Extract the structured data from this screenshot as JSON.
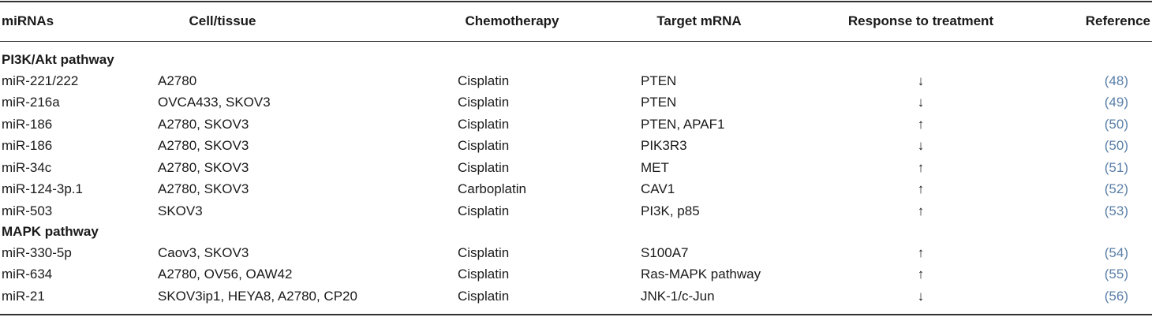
{
  "table": {
    "header": [
      "miRNAs",
      "Cell/tissue",
      "Chemotherapy",
      "Target mRNA",
      "Response to treatment",
      "Reference"
    ],
    "sections": [
      {
        "title": "PI3K/Akt pathway",
        "rows": [
          [
            "miR-221/222",
            "A2780",
            "Cisplatin",
            "PTEN",
            "↓",
            "(48)"
          ],
          [
            "miR-216a",
            "OVCA433, SKOV3",
            "Cisplatin",
            "PTEN",
            "↓",
            "(49)"
          ],
          [
            "miR-186",
            "A2780, SKOV3",
            "Cisplatin",
            "PTEN, APAF1",
            "↑",
            "(50)"
          ],
          [
            "miR-186",
            "A2780, SKOV3",
            "Cisplatin",
            "PIK3R3",
            "↓",
            "(50)"
          ],
          [
            "miR-34c",
            "A2780, SKOV3",
            "Cisplatin",
            "MET",
            "↑",
            "(51)"
          ],
          [
            "miR-124-3p.1",
            "A2780, SKOV3",
            "Carboplatin",
            "CAV1",
            "↑",
            "(52)"
          ],
          [
            "miR-503",
            "SKOV3",
            "Cisplatin",
            "PI3K, p85",
            "↑",
            "(53)"
          ]
        ]
      },
      {
        "title": "MAPK pathway",
        "rows": [
          [
            "miR-330-5p",
            "Caov3, SKOV3",
            "Cisplatin",
            "S100A7",
            "↑",
            "(54)"
          ],
          [
            "miR-634",
            "A2780, OV56, OAW42",
            "Cisplatin",
            "Ras-MAPK pathway",
            "↑",
            "(55)"
          ],
          [
            "miR-21",
            "SKOV3ip1, HEYA8, A2780, CP20",
            "Cisplatin",
            "JNK-1/c-Jun",
            "↓",
            "(56)"
          ]
        ]
      }
    ]
  }
}
